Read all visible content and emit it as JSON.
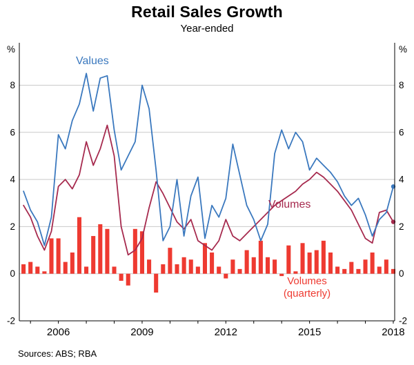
{
  "title": "Retail Sales Growth",
  "subtitle": "Year-ended",
  "source_note": "Sources: ABS; RBA",
  "axis_units": {
    "left": "%",
    "right": "%"
  },
  "annotations": {
    "values_label": "Values",
    "volumes_label": "Volumes",
    "volumes_quarterly_line1": "Volumes",
    "volumes_quarterly_line2": "(quarterly)"
  },
  "colors": {
    "values_line": "#3a78be",
    "volumes_line": "#a62a4e",
    "quarterly_bars": "#ee3a31",
    "grid": "#c9c9c9",
    "axis": "#000000",
    "text": "#000000"
  },
  "chart_data": {
    "type": "line+bar",
    "title": "Retail Sales Growth",
    "subtitle": "Year-ended",
    "unit": "%",
    "grid": true,
    "legend_position": "inline-annotations",
    "ylim": [
      -2,
      9.8
    ],
    "y_ticks": [
      -2,
      0,
      2,
      4,
      6,
      8
    ],
    "xlim": [
      2004.6,
      2018.05
    ],
    "x_tick_years": [
      2006,
      2009,
      2012,
      2015,
      2018
    ],
    "x_tick_labels": [
      "2006",
      "2009",
      "2012",
      "2015",
      "2018"
    ],
    "x": [
      2004.75,
      2005.0,
      2005.25,
      2005.5,
      2005.75,
      2006.0,
      2006.25,
      2006.5,
      2006.75,
      2007.0,
      2007.25,
      2007.5,
      2007.75,
      2008.0,
      2008.25,
      2008.5,
      2008.75,
      2009.0,
      2009.25,
      2009.5,
      2009.75,
      2010.0,
      2010.25,
      2010.5,
      2010.75,
      2011.0,
      2011.25,
      2011.5,
      2011.75,
      2012.0,
      2012.25,
      2012.5,
      2012.75,
      2013.0,
      2013.25,
      2013.5,
      2013.75,
      2014.0,
      2014.25,
      2014.5,
      2014.75,
      2015.0,
      2015.25,
      2015.5,
      2015.75,
      2016.0,
      2016.25,
      2016.5,
      2016.75,
      2017.0,
      2017.25,
      2017.5,
      2017.75,
      2018.0
    ],
    "series": [
      {
        "name": "Values",
        "type": "line",
        "color": "#3a78be",
        "values": [
          3.5,
          2.7,
          2.2,
          1.2,
          2.4,
          5.9,
          5.3,
          6.5,
          7.2,
          8.5,
          6.9,
          8.3,
          8.4,
          6.1,
          4.4,
          5.0,
          5.6,
          8.0,
          7.0,
          4.4,
          1.4,
          2.0,
          4.0,
          1.6,
          3.3,
          4.1,
          1.5,
          2.9,
          2.4,
          3.2,
          5.5,
          4.2,
          2.9,
          2.3,
          1.4,
          2.1,
          5.1,
          6.1,
          5.3,
          6.0,
          5.6,
          4.4,
          4.9,
          4.6,
          4.3,
          3.9,
          3.3,
          2.9,
          3.2,
          2.5,
          1.6,
          2.3,
          2.6,
          3.7
        ]
      },
      {
        "name": "Volumes",
        "type": "line",
        "color": "#a62a4e",
        "values": [
          2.9,
          2.4,
          1.6,
          1.0,
          1.8,
          3.7,
          4.0,
          3.6,
          4.2,
          5.6,
          4.6,
          5.3,
          6.3,
          5.0,
          2.0,
          0.8,
          1.0,
          1.5,
          2.8,
          3.9,
          3.4,
          2.8,
          2.2,
          1.9,
          2.3,
          1.4,
          1.2,
          1.0,
          1.4,
          2.3,
          1.6,
          1.4,
          1.7,
          2.0,
          2.3,
          2.6,
          2.9,
          3.1,
          3.3,
          3.5,
          3.8,
          4.0,
          4.3,
          4.1,
          3.8,
          3.5,
          3.1,
          2.7,
          2.1,
          1.5,
          1.3,
          2.6,
          2.7,
          2.2
        ]
      },
      {
        "name": "Volumes (quarterly)",
        "type": "bar",
        "color": "#ee3a31",
        "values": [
          0.4,
          0.5,
          0.3,
          0.1,
          1.5,
          1.5,
          0.5,
          0.9,
          2.4,
          0.3,
          1.6,
          2.1,
          1.9,
          0.3,
          -0.3,
          -0.5,
          1.9,
          1.8,
          0.6,
          -0.8,
          0.4,
          1.1,
          0.4,
          0.7,
          0.6,
          0.3,
          1.3,
          0.9,
          0.3,
          -0.2,
          0.6,
          0.2,
          1.0,
          0.7,
          1.4,
          0.7,
          0.6,
          -0.1,
          1.2,
          0.1,
          1.3,
          0.9,
          1.0,
          1.4,
          0.9,
          0.3,
          0.2,
          0.5,
          0.2,
          0.6,
          0.9,
          0.3,
          0.6,
          0.2
        ]
      }
    ]
  }
}
